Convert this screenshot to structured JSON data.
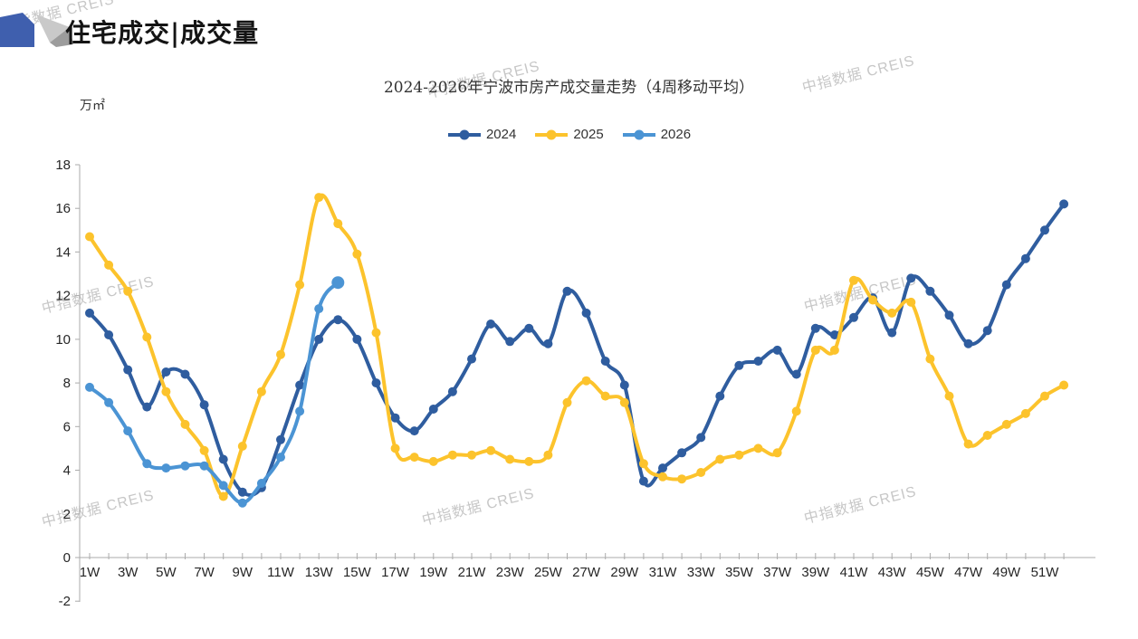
{
  "header": {
    "title": "住宅成交|成交量"
  },
  "watermark": {
    "text": "中指数据 CREIS",
    "color": "#c7c7c7"
  },
  "chart_data": {
    "type": "line",
    "title": "2024-2026年宁波市房产成交量走势（4周移动平均）",
    "unit_label": "万㎡",
    "xlabel": "",
    "ylabel": "万㎡",
    "ylim": [
      -2,
      18
    ],
    "y_ticks": [
      -2,
      0,
      2,
      4,
      6,
      8,
      10,
      12,
      14,
      16,
      18
    ],
    "x_weeks": 52,
    "x_tick_labels": [
      "1W",
      "3W",
      "5W",
      "7W",
      "9W",
      "11W",
      "13W",
      "15W",
      "17W",
      "19W",
      "21W",
      "23W",
      "25W",
      "27W",
      "29W",
      "31W",
      "33W",
      "35W",
      "37W",
      "39W",
      "41W",
      "43W",
      "45W",
      "47W",
      "49W",
      "51W"
    ],
    "grid": false,
    "legend_position": "top",
    "axis_color": "#ababab",
    "series": [
      {
        "name": "2024",
        "color": "#2F5D9F",
        "values": [
          11.2,
          10.2,
          8.6,
          6.9,
          8.5,
          8.4,
          7.0,
          4.5,
          3.0,
          3.2,
          5.4,
          7.9,
          10.0,
          10.9,
          10.0,
          8.0,
          6.4,
          5.8,
          6.8,
          7.6,
          9.1,
          10.7,
          9.9,
          10.5,
          9.8,
          12.2,
          11.2,
          9.0,
          7.9,
          3.5,
          4.1,
          4.8,
          5.5,
          7.4,
          8.8,
          9.0,
          9.5,
          8.4,
          10.5,
          10.2,
          11.0,
          11.9,
          10.3,
          12.8,
          12.2,
          11.1,
          9.8,
          10.4,
          12.5,
          13.7,
          15.0,
          16.2
        ]
      },
      {
        "name": "2025",
        "color": "#FCC32C",
        "values": [
          14.7,
          13.4,
          12.2,
          10.1,
          7.6,
          6.1,
          4.9,
          2.8,
          5.1,
          7.6,
          9.3,
          12.5,
          16.5,
          15.3,
          13.9,
          10.3,
          5.0,
          4.6,
          4.4,
          4.7,
          4.7,
          4.9,
          4.5,
          4.4,
          4.7,
          7.1,
          8.1,
          7.4,
          7.1,
          4.3,
          3.7,
          3.6,
          3.9,
          4.5,
          4.7,
          5.0,
          4.8,
          6.7,
          9.5,
          9.5,
          12.7,
          11.8,
          11.2,
          11.7,
          9.1,
          7.4,
          5.2,
          5.6,
          6.1,
          6.6,
          7.4,
          7.9
        ]
      },
      {
        "name": "2026",
        "color": "#4B94D4",
        "last_point_emphasis": true,
        "values": [
          7.8,
          7.1,
          5.8,
          4.3,
          4.1,
          4.2,
          4.2,
          3.3,
          2.5,
          3.4,
          4.6,
          6.7,
          11.4,
          12.6
        ]
      }
    ]
  }
}
